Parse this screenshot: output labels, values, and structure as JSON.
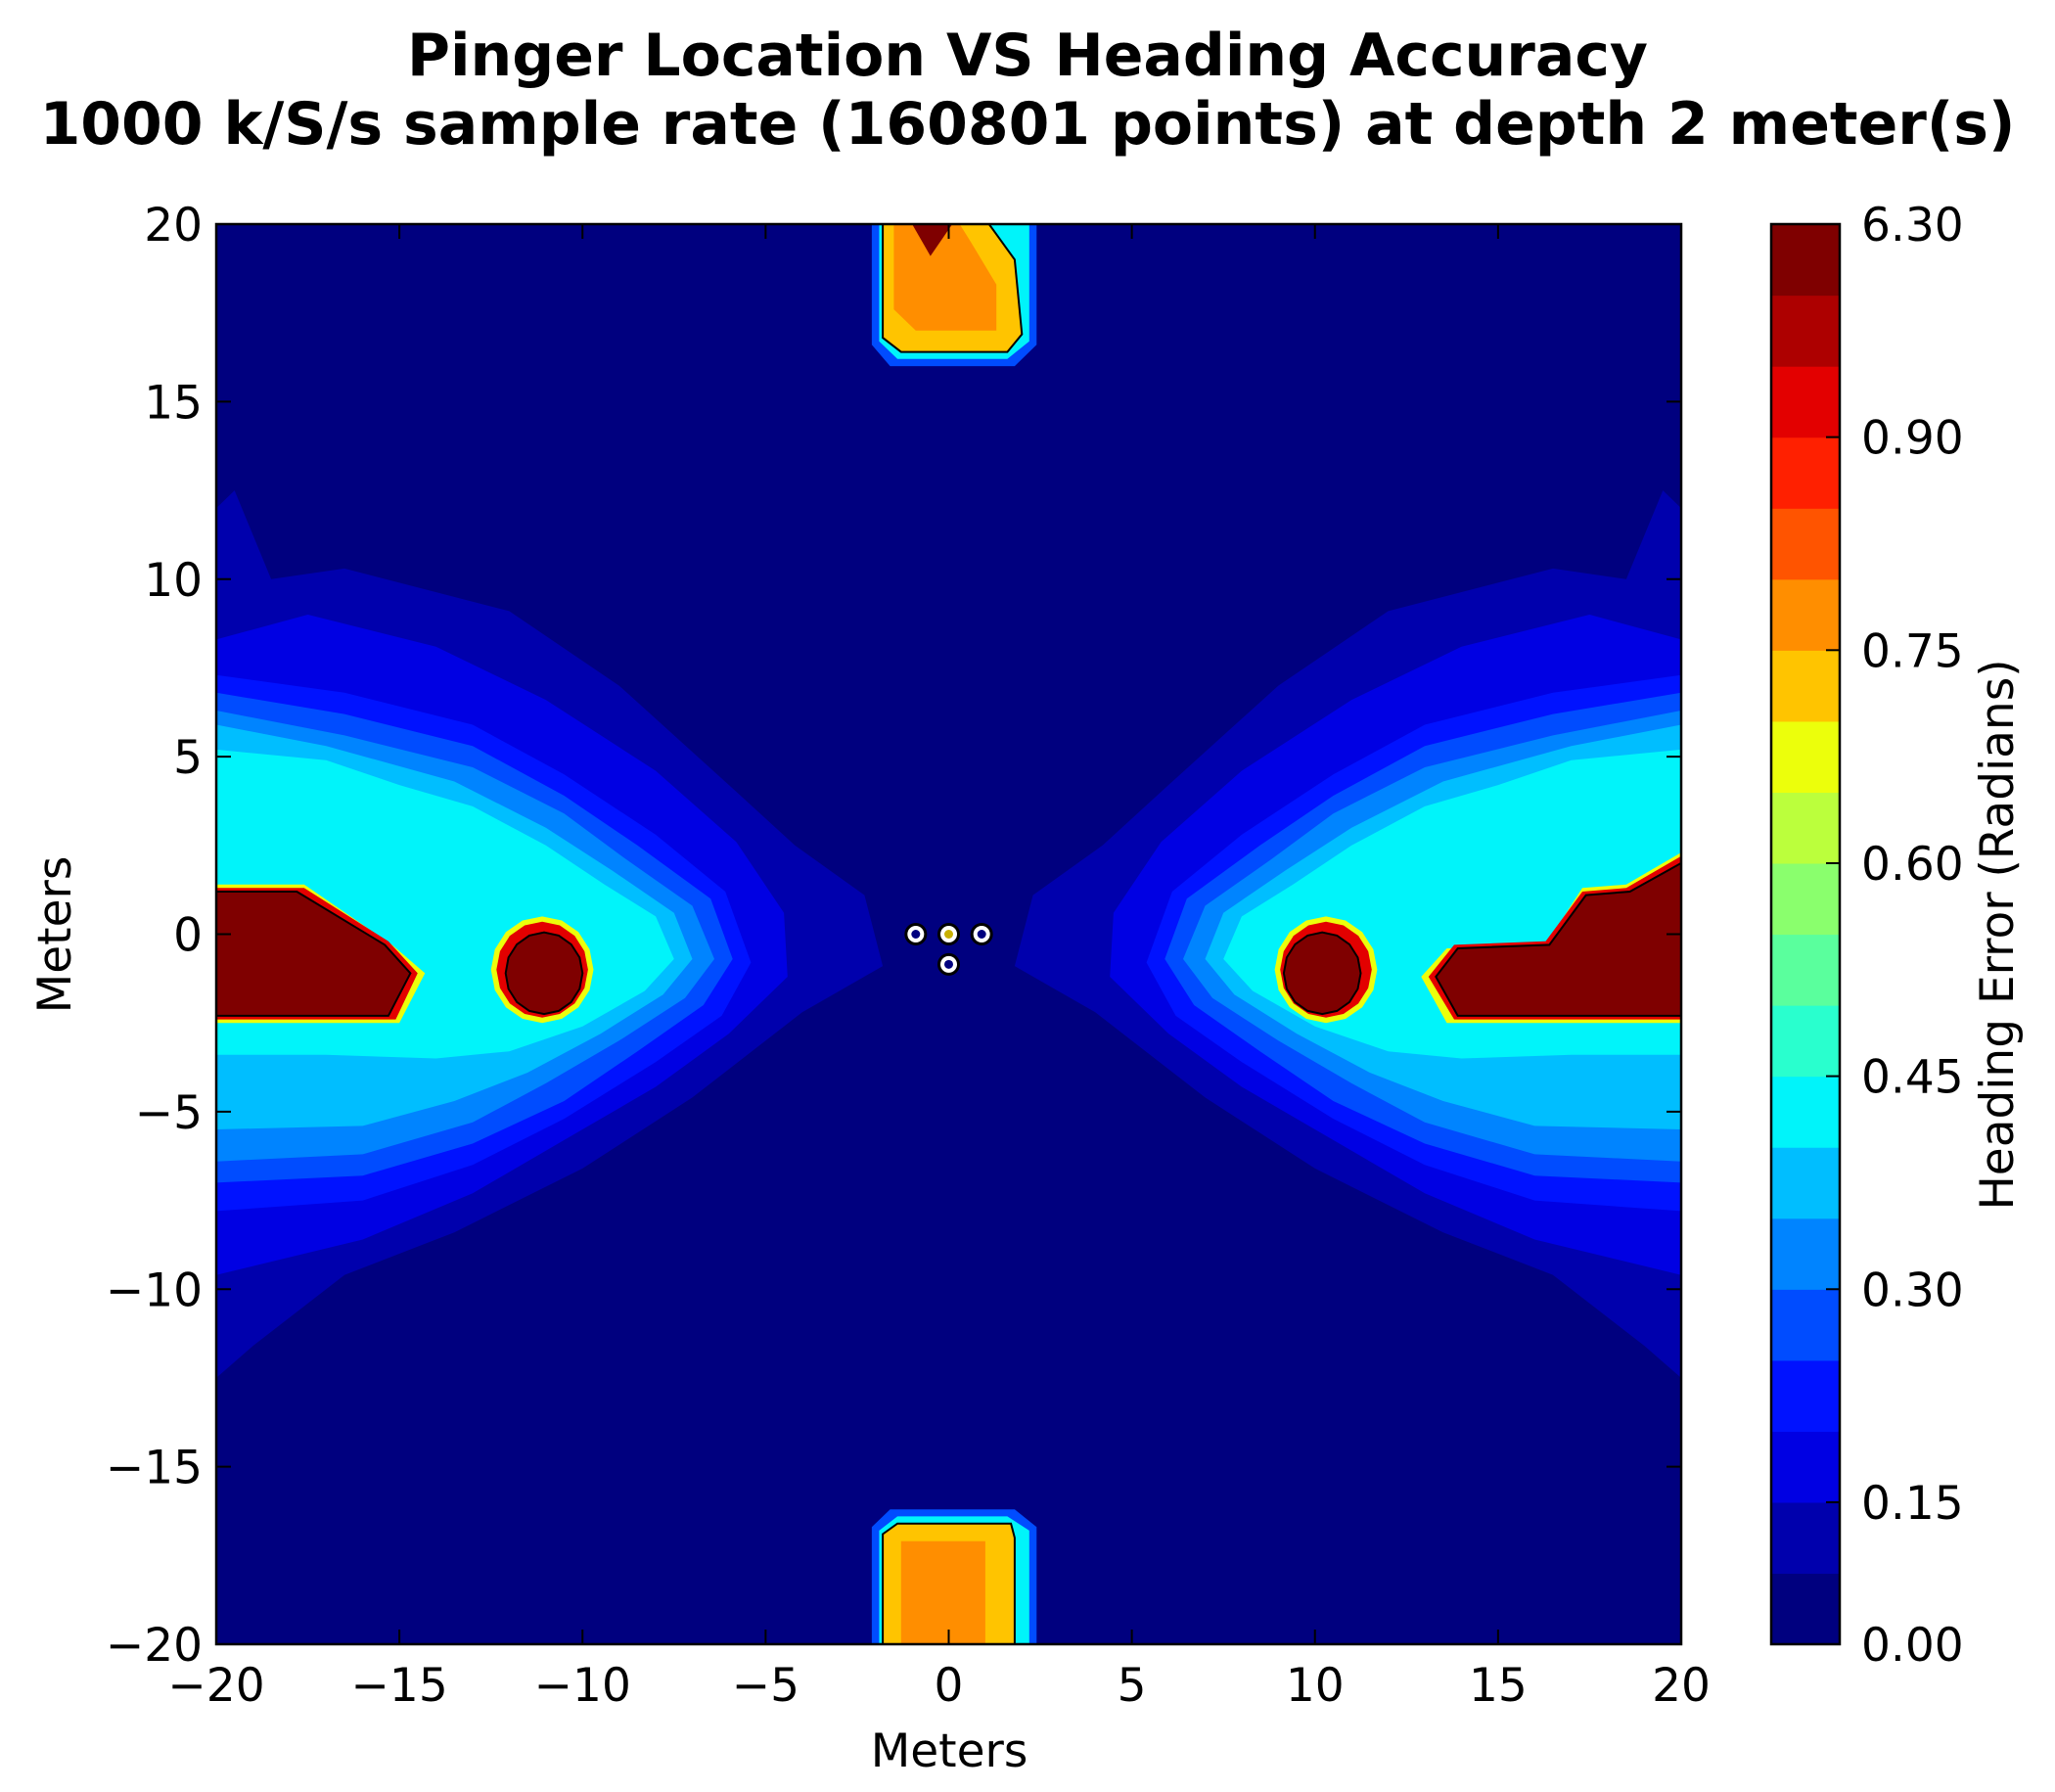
{
  "chart_data": {
    "type": "heatmap",
    "title": "Pinger Location VS Heading Accuracy",
    "subtitle": "1000 k/S/s sample rate (160801 points) at depth 2 meter(s)",
    "xlabel": "Meters",
    "ylabel": "Meters",
    "xlim": [
      -20,
      20
    ],
    "ylim": [
      -20,
      20
    ],
    "x_ticks": [
      "−20",
      "−15",
      "−10",
      "−5",
      "0",
      "5",
      "10",
      "15",
      "20"
    ],
    "y_ticks": [
      "20",
      "15",
      "10",
      "5",
      "0",
      "−5",
      "−10",
      "−15",
      "−20"
    ],
    "colorbar": {
      "label": "Heading Error (Radians)",
      "range": [
        0.0,
        6.3
      ],
      "tick_labels": [
        "6.30",
        "0.90",
        "0.75",
        "0.60",
        "0.45",
        "0.30",
        "0.15",
        "0.00"
      ],
      "levels": [
        "#00007f",
        "#0000ad",
        "#0000e3",
        "#0012ff",
        "#004cff",
        "#0084ff",
        "#00beff",
        "#00f4fa",
        "#29ffce",
        "#5aff9d",
        "#8aff6d",
        "#bbff3c",
        "#ecff0b",
        "#ffc400",
        "#ff8e00",
        "#ff5400",
        "#ff2000",
        "#e30000",
        "#ad0000",
        "#7f0000"
      ]
    },
    "regions": [
      {
        "name": "background",
        "heading_error": 0.02
      },
      {
        "name": "left lobe",
        "heading_error": 0.36
      },
      {
        "name": "right lobe",
        "heading_error": 0.36
      },
      {
        "name": "top hotspot",
        "heading_error": 0.8
      },
      {
        "name": "bottom hotspot",
        "heading_error": 0.77
      },
      {
        "name": "left bar",
        "heading_error": 6.3
      },
      {
        "name": "right bar",
        "heading_error": 6.3
      },
      {
        "name": "left island",
        "heading_error": 6.3
      },
      {
        "name": "right island",
        "heading_error": 6.3
      }
    ],
    "hydrophones": [
      {
        "x": -0.9,
        "y": 0.0
      },
      {
        "x": 0.0,
        "y": 0.0
      },
      {
        "x": 0.9,
        "y": 0.0
      },
      {
        "x": 0.0,
        "y": -0.85
      }
    ]
  }
}
